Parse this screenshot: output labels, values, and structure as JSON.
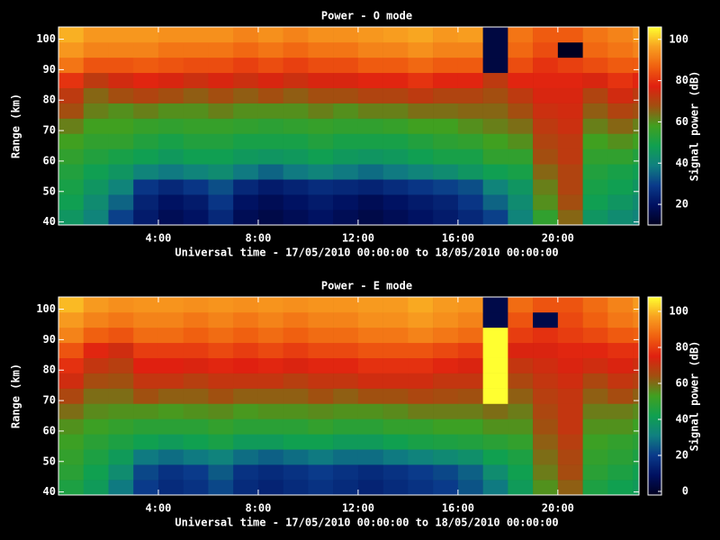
{
  "chart_data": [
    {
      "type": "heatmap",
      "title": "Power - O mode",
      "xlabel": "Universal time - 17/05/2010 00:00:00 to 18/05/2010 00:00:00",
      "ylabel": "Range (km)",
      "zlabel": "Signal power (dB)",
      "x": [
        0,
        1,
        2,
        3,
        4,
        5,
        6,
        7,
        8,
        9,
        10,
        11,
        12,
        13,
        14,
        15,
        16,
        17,
        18,
        19,
        20,
        21,
        22,
        23,
        24
      ],
      "y": [
        39,
        44,
        49,
        54,
        59,
        64,
        69,
        74,
        79,
        84,
        89,
        94,
        99,
        104
      ],
      "xlim": [
        0,
        23.25
      ],
      "ylim": [
        39,
        104
      ],
      "zlim": [
        10,
        106
      ],
      "xticks": [
        {
          "value": 4,
          "label": "4:00"
        },
        {
          "value": 8,
          "label": "8:00"
        },
        {
          "value": 12,
          "label": "12:00"
        },
        {
          "value": 16,
          "label": "16:00"
        },
        {
          "value": 20,
          "label": "20:00"
        }
      ],
      "yticks": [
        40,
        50,
        60,
        70,
        80,
        90,
        100
      ],
      "zticks": [
        20,
        40,
        60,
        80,
        100
      ],
      "colormap": [
        "#000020",
        "#001060",
        "#0a3a8a",
        "#108080",
        "#10a050",
        "#40a020",
        "#a05010",
        "#e02010",
        "#f06010",
        "#f8a020",
        "#ffff30"
      ],
      "z": [
        [
          45,
          40,
          30,
          22,
          18,
          20,
          25,
          18,
          16,
          18,
          20,
          18,
          16,
          18,
          20,
          22,
          25,
          30,
          40,
          55,
          65,
          45,
          42,
          40
        ],
        [
          48,
          42,
          35,
          24,
          20,
          22,
          28,
          20,
          18,
          20,
          22,
          20,
          18,
          20,
          22,
          24,
          28,
          35,
          42,
          60,
          68,
          48,
          45,
          42
        ],
        [
          50,
          45,
          40,
          28,
          25,
          28,
          32,
          25,
          22,
          24,
          26,
          25,
          24,
          26,
          28,
          30,
          32,
          40,
          45,
          62,
          70,
          50,
          48,
          45
        ],
        [
          52,
          48,
          45,
          40,
          38,
          40,
          42,
          38,
          35,
          38,
          40,
          38,
          36,
          38,
          40,
          42,
          45,
          48,
          50,
          65,
          70,
          52,
          50,
          48
        ],
        [
          55,
          52,
          50,
          48,
          46,
          48,
          48,
          46,
          45,
          46,
          48,
          46,
          45,
          46,
          48,
          50,
          50,
          55,
          55,
          68,
          72,
          55,
          55,
          52
        ],
        [
          58,
          55,
          55,
          52,
          50,
          52,
          52,
          50,
          50,
          50,
          52,
          50,
          50,
          50,
          52,
          54,
          55,
          58,
          60,
          70,
          72,
          58,
          60,
          58
        ],
        [
          62,
          58,
          58,
          56,
          55,
          56,
          56,
          55,
          54,
          55,
          56,
          55,
          55,
          56,
          58,
          58,
          60,
          62,
          64,
          72,
          74,
          62,
          65,
          62
        ],
        [
          68,
          62,
          60,
          62,
          60,
          60,
          62,
          60,
          60,
          60,
          62,
          60,
          62,
          62,
          64,
          64,
          65,
          65,
          68,
          74,
          75,
          66,
          70,
          68
        ],
        [
          72,
          65,
          68,
          70,
          68,
          66,
          68,
          66,
          68,
          66,
          68,
          68,
          70,
          70,
          72,
          70,
          70,
          68,
          72,
          76,
          76,
          70,
          75,
          72
        ],
        [
          80,
          72,
          75,
          78,
          76,
          74,
          76,
          74,
          76,
          74,
          76,
          76,
          78,
          78,
          80,
          78,
          78,
          72,
          78,
          78,
          78,
          76,
          80,
          78
        ],
        [
          90,
          85,
          85,
          86,
          85,
          84,
          84,
          82,
          84,
          82,
          84,
          84,
          86,
          86,
          88,
          86,
          86,
          15,
          84,
          80,
          82,
          84,
          86,
          86
        ],
        [
          95,
          92,
          92,
          92,
          90,
          90,
          90,
          88,
          90,
          88,
          90,
          90,
          92,
          92,
          94,
          92,
          92,
          15,
          88,
          84,
          10,
          88,
          90,
          92
        ],
        [
          98,
          95,
          95,
          95,
          94,
          94,
          94,
          92,
          94,
          92,
          94,
          94,
          95,
          96,
          97,
          95,
          96,
          15,
          90,
          86,
          86,
          90,
          92,
          95
        ]
      ]
    },
    {
      "type": "heatmap",
      "title": "Power - E mode",
      "xlabel": "Universal time - 17/05/2010 00:00:00 to 18/05/2010 00:00:00",
      "ylabel": "Range (km)",
      "zlabel": "Signal power (dB)",
      "x": [
        0,
        1,
        2,
        3,
        4,
        5,
        6,
        7,
        8,
        9,
        10,
        11,
        12,
        13,
        14,
        15,
        16,
        17,
        18,
        19,
        20,
        21,
        22,
        23,
        24
      ],
      "y": [
        39,
        44,
        49,
        54,
        59,
        64,
        69,
        74,
        79,
        84,
        89,
        94,
        99,
        104
      ],
      "xlim": [
        0,
        23.25
      ],
      "ylim": [
        39,
        104
      ],
      "zlim": [
        -2,
        108
      ],
      "xticks": [
        {
          "value": 4,
          "label": "4:00"
        },
        {
          "value": 8,
          "label": "8:00"
        },
        {
          "value": 12,
          "label": "12:00"
        },
        {
          "value": 16,
          "label": "16:00"
        },
        {
          "value": 20,
          "label": "20:00"
        }
      ],
      "yticks": [
        40,
        50,
        60,
        70,
        80,
        90,
        100
      ],
      "zticks": [
        0,
        20,
        40,
        60,
        80,
        100
      ],
      "colormap": [
        "#000020",
        "#001060",
        "#0a3a8a",
        "#108080",
        "#10a050",
        "#40a020",
        "#a05010",
        "#e02010",
        "#f06010",
        "#f8a020",
        "#ffff30"
      ],
      "z": [
        [
          45,
          40,
          30,
          20,
          16,
          18,
          22,
          16,
          14,
          16,
          18,
          16,
          14,
          16,
          18,
          20,
          24,
          30,
          40,
          55,
          62,
          45,
          42,
          40
        ],
        [
          48,
          42,
          35,
          22,
          18,
          20,
          25,
          18,
          16,
          18,
          20,
          18,
          16,
          18,
          20,
          22,
          26,
          35,
          42,
          58,
          65,
          48,
          45,
          42
        ],
        [
          50,
          45,
          40,
          30,
          28,
          30,
          32,
          28,
          26,
          28,
          30,
          28,
          28,
          30,
          32,
          34,
          36,
          42,
          45,
          60,
          66,
          50,
          48,
          45
        ],
        [
          52,
          48,
          45,
          42,
          40,
          42,
          44,
          40,
          40,
          42,
          42,
          40,
          40,
          42,
          44,
          45,
          46,
          48,
          50,
          62,
          68,
          52,
          50,
          48
        ],
        [
          55,
          52,
          50,
          48,
          48,
          48,
          50,
          48,
          48,
          48,
          50,
          48,
          48,
          50,
          50,
          52,
          52,
          55,
          55,
          64,
          70,
          55,
          55,
          52
        ],
        [
          60,
          56,
          55,
          55,
          54,
          55,
          56,
          54,
          55,
          55,
          56,
          55,
          55,
          56,
          58,
          58,
          58,
          60,
          58,
          66,
          70,
          58,
          58,
          56
        ],
        [
          66,
          60,
          60,
          64,
          62,
          62,
          64,
          62,
          62,
          62,
          64,
          62,
          64,
          64,
          66,
          65,
          64,
          108,
          62,
          68,
          70,
          62,
          65,
          62
        ],
        [
          72,
          65,
          64,
          70,
          70,
          68,
          70,
          70,
          70,
          68,
          70,
          70,
          72,
          72,
          72,
          70,
          70,
          108,
          66,
          70,
          72,
          66,
          70,
          68
        ],
        [
          78,
          70,
          68,
          75,
          75,
          74,
          76,
          75,
          76,
          74,
          76,
          76,
          78,
          78,
          78,
          76,
          74,
          108,
          70,
          72,
          74,
          72,
          74,
          72
        ],
        [
          84,
          76,
          72,
          80,
          80,
          80,
          82,
          80,
          82,
          80,
          82,
          82,
          84,
          84,
          84,
          82,
          80,
          108,
          74,
          74,
          76,
          76,
          78,
          78
        ],
        [
          92,
          86,
          84,
          88,
          88,
          86,
          88,
          86,
          88,
          86,
          88,
          88,
          90,
          90,
          92,
          90,
          88,
          108,
          80,
          78,
          80,
          82,
          85,
          86
        ],
        [
          96,
          92,
          90,
          92,
          92,
          90,
          92,
          90,
          92,
          90,
          92,
          92,
          94,
          94,
          96,
          94,
          92,
          5,
          84,
          5,
          82,
          86,
          90,
          92
        ],
        [
          100,
          96,
          94,
          95,
          95,
          94,
          95,
          94,
          95,
          94,
          95,
          95,
          96,
          96,
          98,
          96,
          95,
          5,
          88,
          84,
          84,
          88,
          92,
          96
        ]
      ]
    }
  ]
}
